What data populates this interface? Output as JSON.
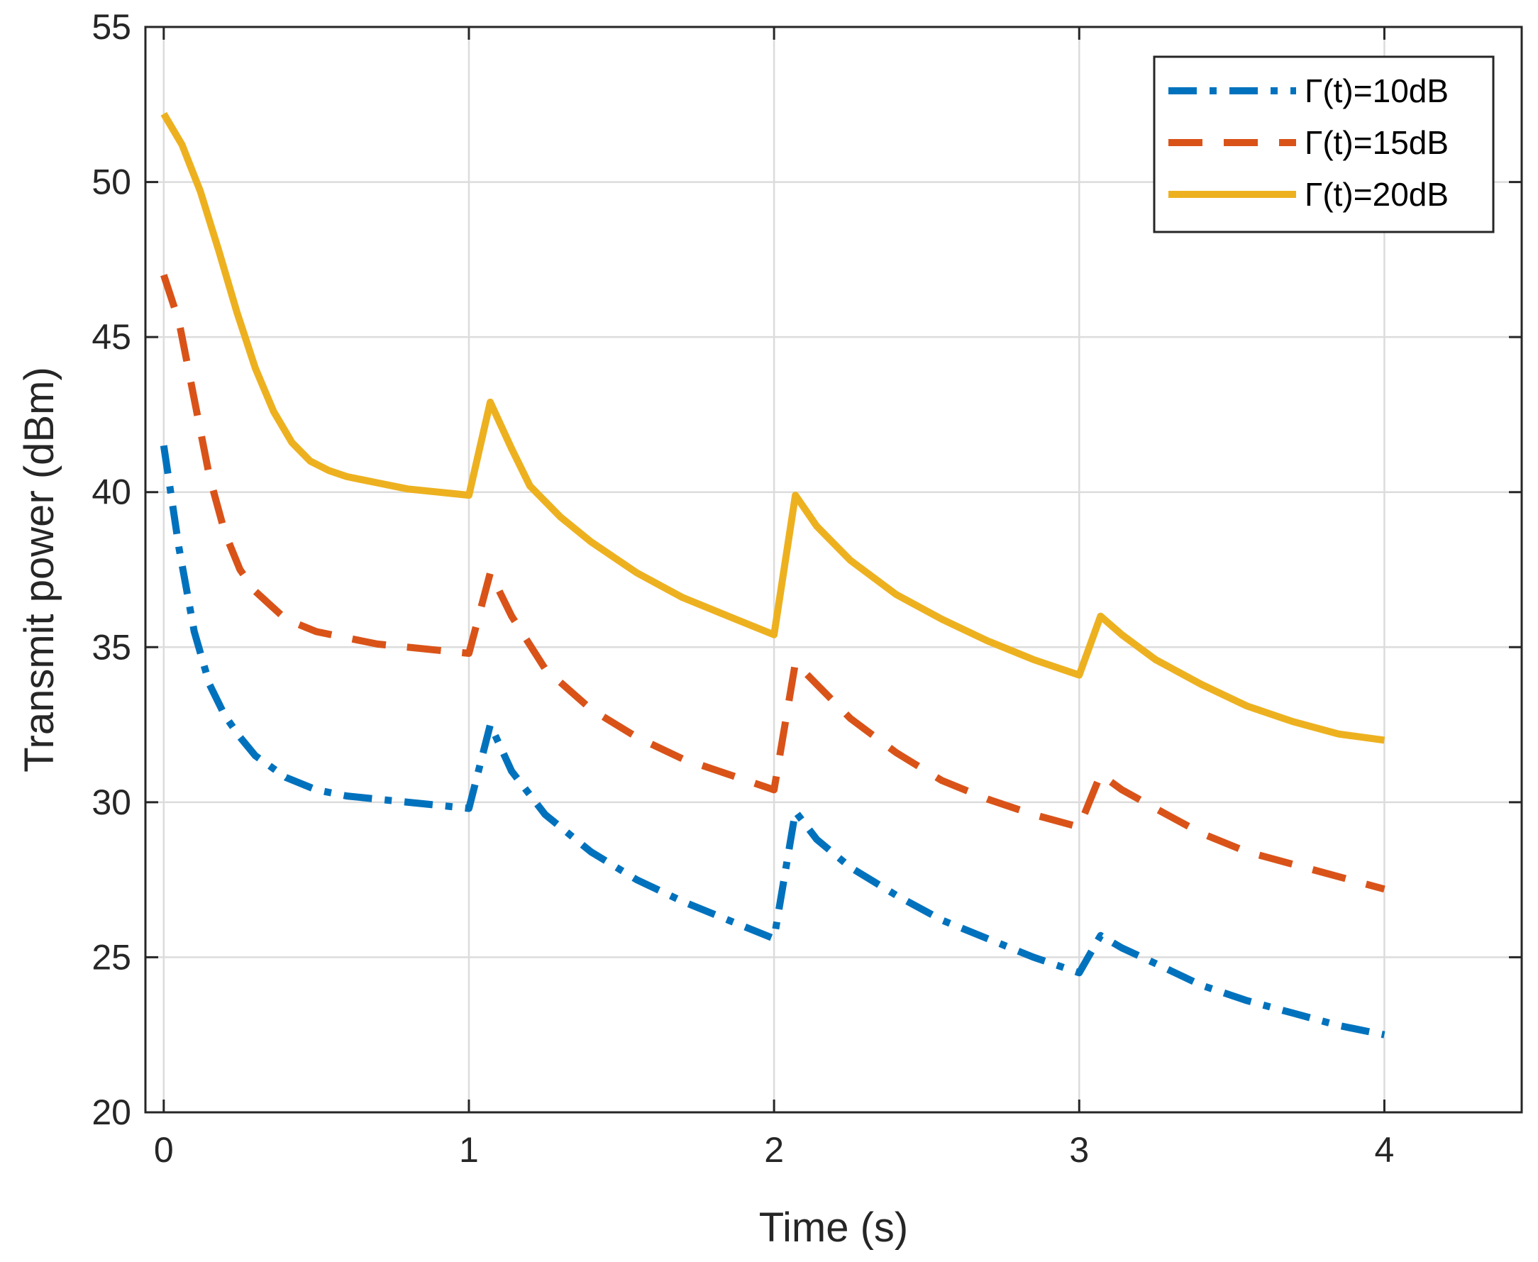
{
  "chart_data": {
    "type": "line",
    "title": "",
    "xlabel": "Time (s)",
    "ylabel": "Transmit power (dBm)",
    "xlim": [
      -0.06,
      4.45
    ],
    "ylim": [
      20,
      55
    ],
    "xticks": [
      0,
      1,
      2,
      3,
      4
    ],
    "yticks": [
      20,
      25,
      30,
      35,
      40,
      45,
      50,
      55
    ],
    "grid": true,
    "legend_position": "top-right",
    "series": [
      {
        "name": "Γ(t)=10dB",
        "color": "#0072BD",
        "style": "dash-dot",
        "x": [
          0,
          0.05,
          0.1,
          0.15,
          0.2,
          0.25,
          0.3,
          0.4,
          0.5,
          0.6,
          0.7,
          0.8,
          0.9,
          1.0,
          1.07,
          1.14,
          1.25,
          1.4,
          1.55,
          1.7,
          1.85,
          2.0,
          2.07,
          2.14,
          2.25,
          2.4,
          2.55,
          2.7,
          2.85,
          3.0,
          3.07,
          3.14,
          3.25,
          3.4,
          3.55,
          3.7,
          3.85,
          4.0
        ],
        "y": [
          41.5,
          38.2,
          35.5,
          33.8,
          32.8,
          32.1,
          31.5,
          30.8,
          30.4,
          30.2,
          30.1,
          30.0,
          29.9,
          29.8,
          32.5,
          31.0,
          29.6,
          28.4,
          27.5,
          26.8,
          26.2,
          25.6,
          29.7,
          28.8,
          27.9,
          27.0,
          26.2,
          25.6,
          25.0,
          24.5,
          25.7,
          25.3,
          24.8,
          24.1,
          23.6,
          23.2,
          22.8,
          22.5
        ]
      },
      {
        "name": "Γ(t)=15dB",
        "color": "#D95319",
        "style": "dashed",
        "x": [
          0,
          0.05,
          0.1,
          0.15,
          0.2,
          0.25,
          0.3,
          0.4,
          0.5,
          0.6,
          0.7,
          0.8,
          0.9,
          1.0,
          1.07,
          1.14,
          1.25,
          1.4,
          1.55,
          1.7,
          1.85,
          2.0,
          2.07,
          2.14,
          2.25,
          2.4,
          2.55,
          2.7,
          2.85,
          3.0,
          3.07,
          3.14,
          3.25,
          3.4,
          3.55,
          3.7,
          3.85,
          4.0
        ],
        "y": [
          47.0,
          45.5,
          43.0,
          40.5,
          38.7,
          37.5,
          36.8,
          35.9,
          35.5,
          35.3,
          35.1,
          35.0,
          34.9,
          34.8,
          37.4,
          36.0,
          34.3,
          33.0,
          32.1,
          31.4,
          30.9,
          30.4,
          34.5,
          33.8,
          32.7,
          31.6,
          30.7,
          30.1,
          29.6,
          29.2,
          30.9,
          30.4,
          29.8,
          29.0,
          28.4,
          28.0,
          27.6,
          27.2
        ]
      },
      {
        "name": "Γ(t)=20dB",
        "color": "#EDB120",
        "style": "solid",
        "x": [
          0,
          0.06,
          0.12,
          0.18,
          0.24,
          0.3,
          0.36,
          0.42,
          0.48,
          0.54,
          0.6,
          0.7,
          0.8,
          0.9,
          1.0,
          1.07,
          1.14,
          1.2,
          1.3,
          1.4,
          1.55,
          1.7,
          1.85,
          2.0,
          2.07,
          2.14,
          2.25,
          2.4,
          2.55,
          2.7,
          2.85,
          3.0,
          3.07,
          3.14,
          3.25,
          3.4,
          3.55,
          3.7,
          3.85,
          4.0
        ],
        "y": [
          52.2,
          51.2,
          49.7,
          47.8,
          45.8,
          44.0,
          42.6,
          41.6,
          41.0,
          40.7,
          40.5,
          40.3,
          40.1,
          40.0,
          39.9,
          42.9,
          41.4,
          40.2,
          39.2,
          38.4,
          37.4,
          36.6,
          36.0,
          35.4,
          39.9,
          38.9,
          37.8,
          36.7,
          35.9,
          35.2,
          34.6,
          34.1,
          36.0,
          35.4,
          34.6,
          33.8,
          33.1,
          32.6,
          32.2,
          32.0
        ]
      }
    ]
  }
}
